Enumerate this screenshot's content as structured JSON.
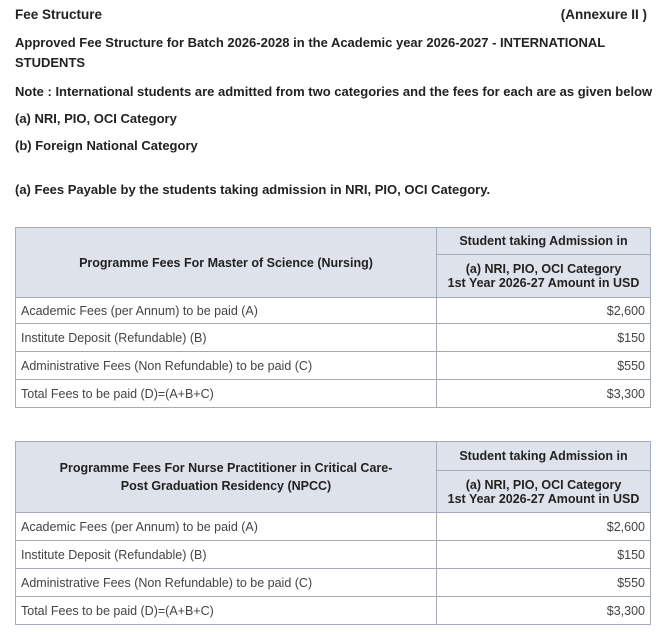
{
  "header": {
    "title": "Fee Structure",
    "annexure": "(Annexure II )"
  },
  "intro": {
    "heading": "Approved Fee Structure for Batch 2026-2028 in the Academic year 2026-2027 - INTERNATIONAL",
    "heading2": "STUDENTS",
    "note": "Note : International students are admitted from two categories and the fees for each are as given below",
    "cat_a": "(a) NRI, PIO, OCI Category",
    "cat_b": "(b) Foreign National Category",
    "section": "(a) Fees Payable by the students taking admission in NRI, PIO, OCI Category."
  },
  "tables": [
    {
      "programme": "Programme Fees For Master of Science (Nursing)",
      "col_head1": "Student taking Admission in",
      "col_head2": "(a) NRI, PIO, OCI Category",
      "col_head3": "1st Year 2026-27 Amount in USD",
      "rows": [
        {
          "label": "Academic Fees (per Annum) to be paid (A)",
          "amount": "$2,600"
        },
        {
          "label": "Institute Deposit (Refundable) (B)",
          "amount": "$150"
        },
        {
          "label": "Administrative Fees (Non Refundable) to be paid (C)",
          "amount": "$550"
        },
        {
          "label": "Total Fees to be paid (D)=(A+B+C)",
          "amount": "$3,300"
        }
      ]
    },
    {
      "programme": "Programme Fees For Nurse Practitioner in Critical Care-",
      "programme2": "Post Graduation Residency (NPCC)",
      "col_head1": "Student taking Admission in",
      "col_head2": "(a) NRI, PIO, OCI Category",
      "col_head3": "1st Year 2026-27 Amount in USD",
      "rows": [
        {
          "label": "Academic Fees (per Annum) to be paid (A)",
          "amount": "$2,600"
        },
        {
          "label": "Institute Deposit (Refundable) (B)",
          "amount": "$150"
        },
        {
          "label": "Administrative Fees (Non Refundable) to be paid (C)",
          "amount": "$550"
        },
        {
          "label": "Total Fees to be paid (D)=(A+B+C)",
          "amount": "$3,300"
        }
      ]
    }
  ]
}
